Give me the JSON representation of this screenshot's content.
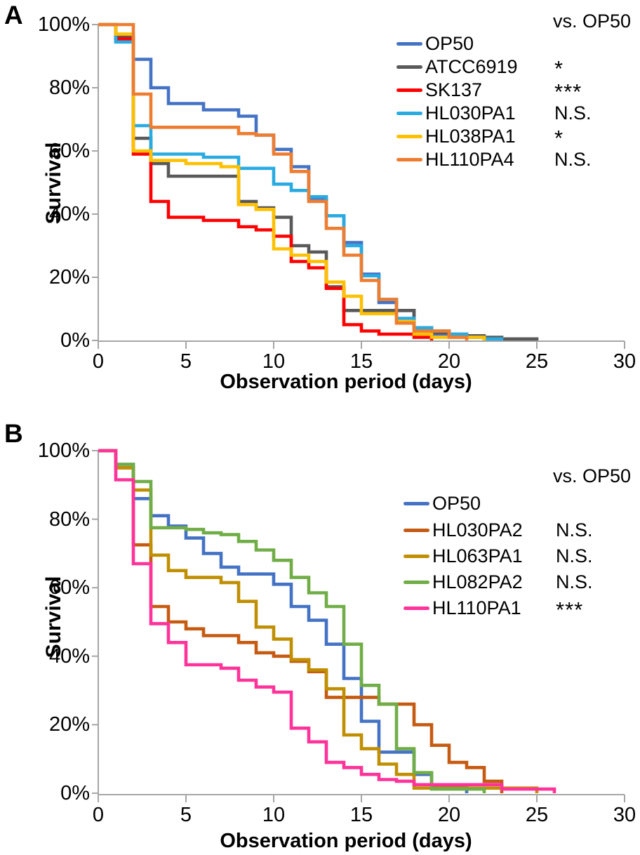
{
  "panels": [
    {
      "label": "A",
      "y_axis_title": "Survival",
      "x_axis_title": "Observation period (days)",
      "y_tick_labels": [
        "100%",
        "80%",
        "60%",
        "40%",
        "20%",
        "0%"
      ],
      "x_tick_labels": [
        "0",
        "5",
        "10",
        "15",
        "20",
        "25",
        "30"
      ],
      "legend_header": "vs. OP50",
      "chart_data": {
        "type": "line",
        "step": true,
        "title": "",
        "xlabel": "Observation period (days)",
        "ylabel": "Survival",
        "xlim": [
          0,
          30
        ],
        "ylim_percent": [
          0,
          100
        ],
        "grid": false,
        "legend_position": "upper right",
        "x_unit": "days",
        "series": [
          {
            "name": "OP50",
            "color": "#4472C4",
            "significance_vs_op50": "",
            "points": [
              [
                0,
                100
              ],
              [
                1,
                95
              ],
              [
                2,
                89
              ],
              [
                3,
                80
              ],
              [
                4,
                75
              ],
              [
                6,
                73
              ],
              [
                8,
                71
              ],
              [
                9,
                65
              ],
              [
                10,
                60.5
              ],
              [
                11,
                55
              ],
              [
                12,
                45
              ],
              [
                13,
                39.5
              ],
              [
                14,
                31
              ],
              [
                15,
                21
              ],
              [
                16,
                12
              ],
              [
                17,
                9.5
              ],
              [
                18,
                4
              ],
              [
                19,
                2
              ],
              [
                20,
                1.5
              ],
              [
                21,
                1
              ],
              [
                22,
                0
              ]
            ]
          },
          {
            "name": "ATCC6919",
            "color": "#595959",
            "significance_vs_op50": "*",
            "points": [
              [
                0,
                100
              ],
              [
                1,
                96
              ],
              [
                2,
                64
              ],
              [
                3,
                56
              ],
              [
                4,
                52
              ],
              [
                8,
                44
              ],
              [
                9,
                42
              ],
              [
                10,
                39
              ],
              [
                11,
                30
              ],
              [
                12,
                28
              ],
              [
                13,
                17
              ],
              [
                14,
                9.5
              ],
              [
                18,
                4
              ],
              [
                19,
                2.5
              ],
              [
                20,
                2
              ],
              [
                21,
                1.5
              ],
              [
                22,
                1
              ],
              [
                23,
                0.5
              ],
              [
                25,
                0
              ]
            ]
          },
          {
            "name": "SK137",
            "color": "#FF0000",
            "significance_vs_op50": "***",
            "points": [
              [
                0,
                100
              ],
              [
                1,
                95.5
              ],
              [
                2,
                59
              ],
              [
                3,
                44
              ],
              [
                4,
                39
              ],
              [
                6,
                38
              ],
              [
                8,
                36
              ],
              [
                9,
                35
              ],
              [
                10,
                33
              ],
              [
                11,
                25
              ],
              [
                12,
                23
              ],
              [
                13,
                16.5
              ],
              [
                14,
                5
              ],
              [
                15,
                3
              ],
              [
                16,
                2
              ],
              [
                18,
                1
              ],
              [
                19,
                0
              ]
            ]
          },
          {
            "name": "HL030PA1",
            "color": "#29ABE2",
            "significance_vs_op50": "N.S.",
            "points": [
              [
                0,
                100
              ],
              [
                1,
                94.5
              ],
              [
                2,
                68
              ],
              [
                3,
                59
              ],
              [
                6,
                58
              ],
              [
                8,
                54.5
              ],
              [
                10,
                49.5
              ],
              [
                11,
                47.5
              ],
              [
                12,
                45.5
              ],
              [
                13,
                39.5
              ],
              [
                14,
                30
              ],
              [
                15,
                20.5
              ],
              [
                16,
                13
              ],
              [
                17,
                7
              ],
              [
                18,
                4
              ],
              [
                19,
                3
              ],
              [
                20,
                2
              ],
              [
                21,
                1
              ],
              [
                22,
                0.5
              ],
              [
                23,
                0
              ]
            ]
          },
          {
            "name": "HL038PA1",
            "color": "#FFC000",
            "significance_vs_op50": "*",
            "points": [
              [
                0,
                100
              ],
              [
                1,
                97
              ],
              [
                2,
                60
              ],
              [
                3,
                57
              ],
              [
                5,
                56
              ],
              [
                7,
                55
              ],
              [
                8,
                43
              ],
              [
                9,
                41.5
              ],
              [
                10,
                29
              ],
              [
                11,
                27
              ],
              [
                12,
                25
              ],
              [
                13,
                18.5
              ],
              [
                14,
                14
              ],
              [
                15,
                8.5
              ],
              [
                17,
                6
              ],
              [
                18,
                2
              ],
              [
                19,
                1
              ],
              [
                22,
                0
              ]
            ]
          },
          {
            "name": "HL110PA4",
            "color": "#ED7D31",
            "significance_vs_op50": "N.S.",
            "points": [
              [
                0,
                100
              ],
              [
                2,
                78
              ],
              [
                3,
                67.5
              ],
              [
                8,
                65.5
              ],
              [
                9,
                65
              ],
              [
                10,
                59
              ],
              [
                11,
                53.5
              ],
              [
                12,
                44
              ],
              [
                13,
                35.5
              ],
              [
                14,
                27
              ],
              [
                15,
                19
              ],
              [
                16,
                13
              ],
              [
                17,
                5.5
              ],
              [
                18,
                3
              ],
              [
                20,
                1
              ],
              [
                21,
                0
              ]
            ]
          }
        ]
      }
    },
    {
      "label": "B",
      "y_axis_title": "Survival",
      "x_axis_title": "Observation period (days)",
      "y_tick_labels": [
        "100%",
        "80%",
        "60%",
        "40%",
        "20%",
        "0%"
      ],
      "x_tick_labels": [
        "0",
        "5",
        "10",
        "15",
        "20",
        "25",
        "30"
      ],
      "legend_header": "vs. OP50",
      "chart_data": {
        "type": "line",
        "step": true,
        "title": "",
        "xlabel": "Observation period (days)",
        "ylabel": "Survival",
        "xlim": [
          0,
          30
        ],
        "ylim_percent": [
          0,
          100
        ],
        "grid": false,
        "legend_position": "upper right",
        "x_unit": "days",
        "series": [
          {
            "name": "OP50",
            "color": "#4472C4",
            "significance_vs_op50": "",
            "points": [
              [
                0,
                100
              ],
              [
                1,
                96
              ],
              [
                2,
                86
              ],
              [
                3,
                81
              ],
              [
                4,
                78
              ],
              [
                5,
                74.5
              ],
              [
                6,
                70
              ],
              [
                7,
                66
              ],
              [
                8,
                64
              ],
              [
                10,
                61
              ],
              [
                11,
                54.5
              ],
              [
                12,
                50.5
              ],
              [
                13,
                43.5
              ],
              [
                14,
                33.5
              ],
              [
                15,
                21
              ],
              [
                16,
                12
              ],
              [
                18,
                5.5
              ],
              [
                19,
                2
              ],
              [
                21,
                0
              ]
            ]
          },
          {
            "name": "HL030PA2",
            "color": "#C55A11",
            "significance_vs_op50": "N.S.",
            "points": [
              [
                0,
                100
              ],
              [
                1,
                95
              ],
              [
                2,
                72.5
              ],
              [
                3,
                54.5
              ],
              [
                4,
                50
              ],
              [
                5,
                48
              ],
              [
                6,
                46
              ],
              [
                8,
                44
              ],
              [
                9,
                41
              ],
              [
                10,
                40
              ],
              [
                11,
                38.5
              ],
              [
                12,
                35.5
              ],
              [
                13,
                28
              ],
              [
                16,
                26
              ],
              [
                18,
                20
              ],
              [
                19,
                14
              ],
              [
                20,
                9
              ],
              [
                21,
                7.5
              ],
              [
                22,
                3.5
              ],
              [
                23,
                0
              ]
            ]
          },
          {
            "name": "HL063PA1",
            "color": "#BF8F00",
            "significance_vs_op50": "N.S.",
            "points": [
              [
                0,
                100
              ],
              [
                1,
                95
              ],
              [
                2,
                88.5
              ],
              [
                3,
                69.5
              ],
              [
                4,
                65
              ],
              [
                5,
                63
              ],
              [
                7,
                61.5
              ],
              [
                8,
                56
              ],
              [
                9,
                48.5
              ],
              [
                10,
                45
              ],
              [
                11,
                39
              ],
              [
                12,
                36
              ],
              [
                13,
                30.5
              ],
              [
                14,
                17
              ],
              [
                15,
                13
              ],
              [
                16,
                8.5
              ],
              [
                17,
                5.5
              ],
              [
                18,
                1.5
              ],
              [
                25,
                0
              ]
            ]
          },
          {
            "name": "HL082PA2",
            "color": "#70AD47",
            "significance_vs_op50": "N.S.",
            "points": [
              [
                0,
                100
              ],
              [
                1,
                96
              ],
              [
                2,
                91
              ],
              [
                3,
                77.5
              ],
              [
                5,
                77
              ],
              [
                6,
                76
              ],
              [
                7,
                75.5
              ],
              [
                8,
                73.5
              ],
              [
                9,
                71
              ],
              [
                10,
                68
              ],
              [
                11,
                63
              ],
              [
                12,
                58.5
              ],
              [
                13,
                54.5
              ],
              [
                14,
                43.5
              ],
              [
                15,
                31.5
              ],
              [
                16,
                26
              ],
              [
                17,
                13
              ],
              [
                18,
                6
              ],
              [
                19,
                1.2
              ],
              [
                22,
                0
              ]
            ]
          },
          {
            "name": "HL110PA1",
            "color": "#FF3399",
            "significance_vs_op50": "***",
            "points": [
              [
                0,
                100
              ],
              [
                1,
                91.5
              ],
              [
                2,
                67
              ],
              [
                3,
                49.5
              ],
              [
                4,
                44
              ],
              [
                5,
                37.5
              ],
              [
                7,
                36.5
              ],
              [
                8,
                33
              ],
              [
                9,
                31
              ],
              [
                10,
                29.5
              ],
              [
                11,
                19
              ],
              [
                12,
                15
              ],
              [
                13,
                9
              ],
              [
                14,
                7.5
              ],
              [
                15,
                5.5
              ],
              [
                16,
                4
              ],
              [
                17,
                3.5
              ],
              [
                18,
                2.5
              ],
              [
                23,
                1.2
              ],
              [
                26,
                0
              ]
            ]
          }
        ]
      }
    }
  ]
}
